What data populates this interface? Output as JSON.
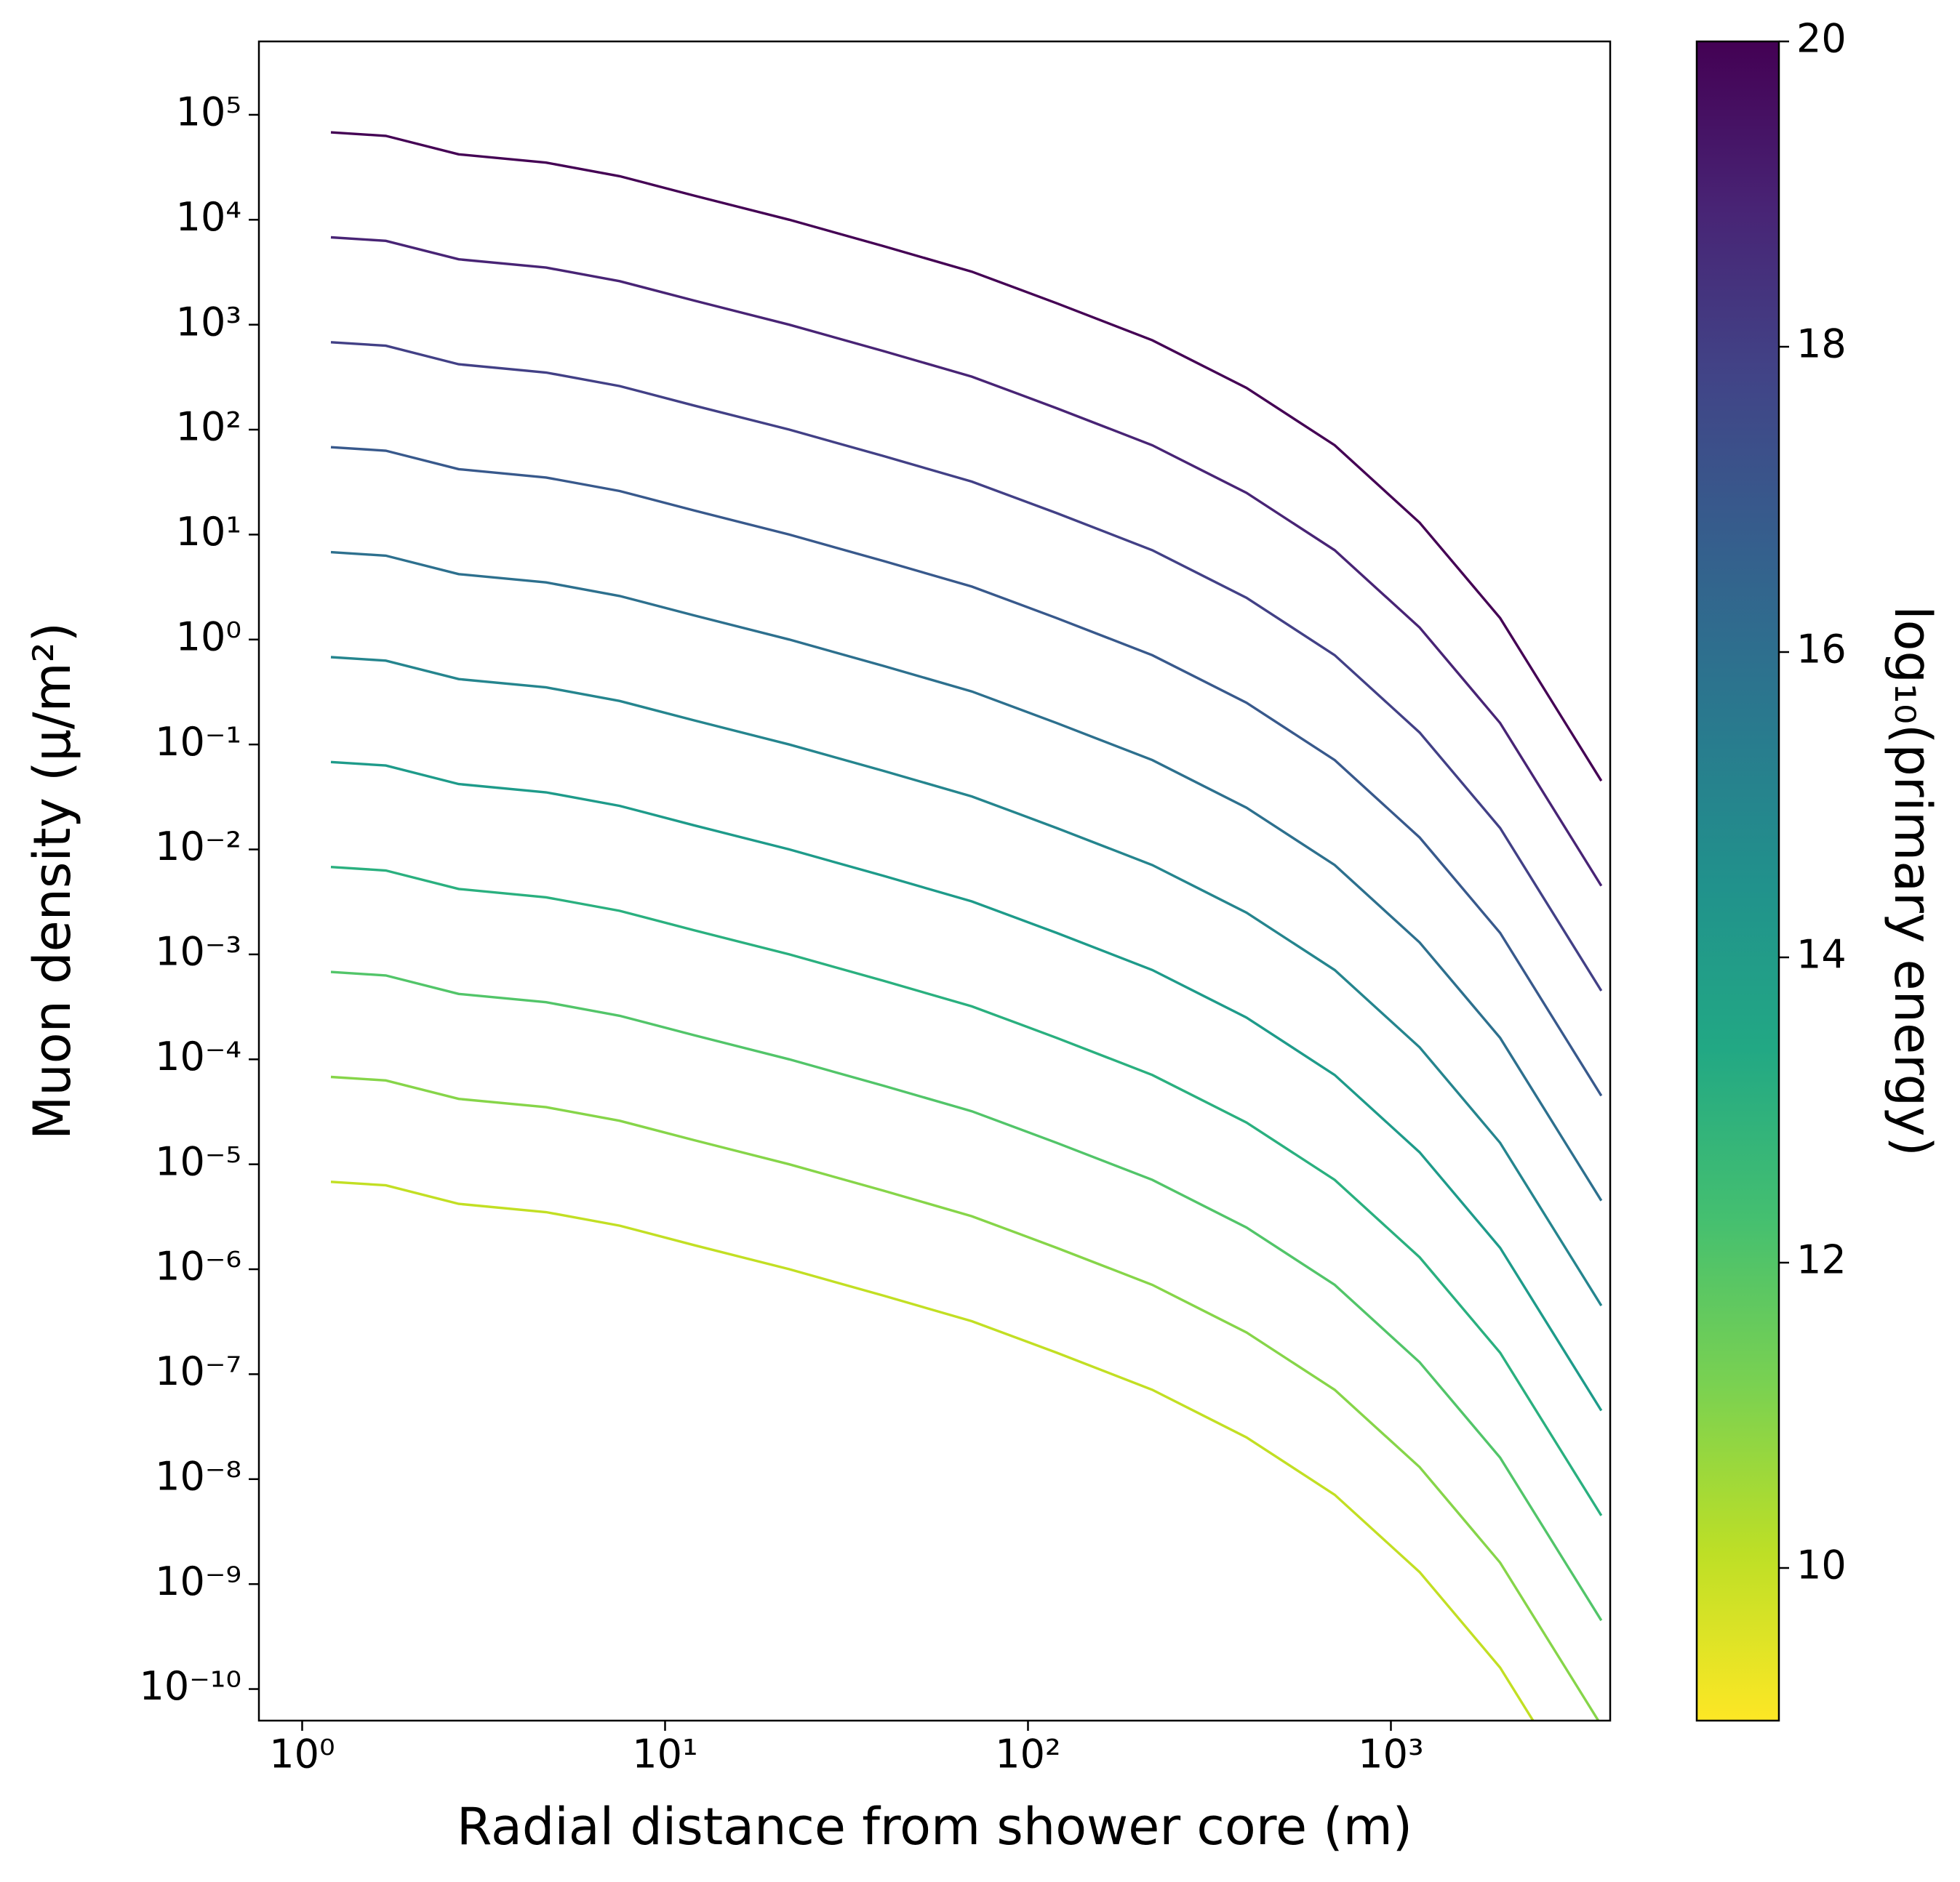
{
  "chart_data": {
    "type": "line",
    "log_x": true,
    "log_y": true,
    "xlabel": "Radial distance from shower core (m)",
    "ylabel": "Muon density (μ/m²)",
    "xlim": [
      0.76,
      4020
    ],
    "ylim": [
      5e-11,
      500000.0
    ],
    "xticks": [
      {
        "value": 1,
        "label": "10⁰"
      },
      {
        "value": 10,
        "label": "10¹"
      },
      {
        "value": 100,
        "label": "10²"
      },
      {
        "value": 1000,
        "label": "10³"
      }
    ],
    "yticks": [
      {
        "value": 100000.0,
        "label": "10⁵"
      },
      {
        "value": 10000.0,
        "label": "10⁴"
      },
      {
        "value": 1000.0,
        "label": "10³"
      },
      {
        "value": 100.0,
        "label": "10²"
      },
      {
        "value": 10.0,
        "label": "10¹"
      },
      {
        "value": 1,
        "label": "10⁰"
      },
      {
        "value": 0.1,
        "label": "10⁻¹"
      },
      {
        "value": 0.01,
        "label": "10⁻²"
      },
      {
        "value": 0.001,
        "label": "10⁻³"
      },
      {
        "value": 0.0001,
        "label": "10⁻⁴"
      },
      {
        "value": 1e-05,
        "label": "10⁻⁵"
      },
      {
        "value": 1e-06,
        "label": "10⁻⁶"
      },
      {
        "value": 1e-07,
        "label": "10⁻⁷"
      },
      {
        "value": 1e-08,
        "label": "10⁻⁸"
      },
      {
        "value": 1e-09,
        "label": "10⁻⁹"
      },
      {
        "value": 1e-10,
        "label": "10⁻¹⁰"
      }
    ],
    "x": [
      1.2,
      1.7,
      2.7,
      4.7,
      7.5,
      12,
      22,
      40,
      70,
      120,
      220,
      400,
      700,
      1200,
      2000,
      3800
    ],
    "series": [
      {
        "color": "#440154",
        "values": [
          68000.0,
          63000.0,
          42000.0,
          35000.0,
          26000.0,
          17000.0,
          10000.0,
          5600.0,
          3200.0,
          1600.0,
          710.0,
          250.0,
          71,
          13,
          1.6,
          0.045
        ]
      },
      {
        "color": "#482475",
        "values": [
          6800.0,
          6300.0,
          4200.0,
          3500.0,
          2600.0,
          1700.0,
          1000.0,
          560.0,
          320.0,
          160.0,
          71,
          25,
          7.1,
          1.3,
          0.16,
          0.0045
        ]
      },
      {
        "color": "#424086",
        "values": [
          680.0,
          630.0,
          420.0,
          350.0,
          260.0,
          170.0,
          100.0,
          56,
          32,
          16,
          7.1,
          2.5,
          0.71,
          0.13,
          0.016,
          0.00045
        ]
      },
      {
        "color": "#38598c",
        "values": [
          68,
          63,
          42,
          35,
          26,
          17,
          10,
          5.6,
          3.2,
          1.6,
          0.71,
          0.25,
          0.071,
          0.013,
          0.0016,
          4.5e-05
        ]
      },
      {
        "color": "#2d708e",
        "values": [
          6.8,
          6.3,
          4.2,
          3.5,
          2.6,
          1.7,
          1.0,
          0.56,
          0.32,
          0.16,
          0.071,
          0.025,
          0.0071,
          0.0013,
          0.00016,
          4.5e-06
        ]
      },
      {
        "color": "#25858e",
        "values": [
          0.68,
          0.63,
          0.42,
          0.35,
          0.26,
          0.17,
          0.1,
          0.056,
          0.032,
          0.016,
          0.0071,
          0.0025,
          0.00071,
          0.00013,
          1.6e-05,
          4.5e-07
        ]
      },
      {
        "color": "#1e9b8a",
        "values": [
          0.068,
          0.063,
          0.042,
          0.035,
          0.026,
          0.017,
          0.01,
          0.0056,
          0.0032,
          0.0016,
          0.00071,
          0.00025,
          7.1e-05,
          1.3e-05,
          1.6e-06,
          4.5e-08
        ]
      },
      {
        "color": "#2ab07f",
        "values": [
          0.0068,
          0.0063,
          0.0042,
          0.0035,
          0.0026,
          0.0017,
          0.001,
          0.00056,
          0.00032,
          0.00016,
          7.1e-05,
          2.5e-05,
          7.1e-06,
          1.3e-06,
          1.6e-07,
          4.5e-09
        ]
      },
      {
        "color": "#52c569",
        "values": [
          0.00068,
          0.00063,
          0.00042,
          0.00035,
          0.00026,
          0.00017,
          0.0001,
          5.6e-05,
          3.2e-05,
          1.6e-05,
          7.1e-06,
          2.5e-06,
          7.1e-07,
          1.3e-07,
          1.6e-08,
          4.5e-10
        ]
      },
      {
        "color": "#86d549",
        "values": [
          6.8e-05,
          6.3e-05,
          4.2e-05,
          3.5e-05,
          2.6e-05,
          1.7e-05,
          1e-05,
          5.6e-06,
          3.2e-06,
          1.6e-06,
          7.1e-07,
          2.5e-07,
          7.1e-08,
          1.3e-08,
          1.6e-09,
          4.5e-11
        ]
      },
      {
        "color": "#c2df23",
        "values": [
          6.8e-06,
          6.3e-06,
          4.2e-06,
          3.5e-06,
          2.6e-06,
          1.7e-06,
          1e-06,
          5.6e-07,
          3.2e-07,
          1.6e-07,
          7.1e-08,
          2.5e-08,
          7.1e-09,
          1.3e-09,
          1.6e-10,
          4.5e-12
        ]
      }
    ],
    "colorbar": {
      "label": "log₁₀(primary energy)",
      "clim": [
        9,
        20
      ],
      "ticks": [
        10,
        12,
        14,
        16,
        18,
        20
      ],
      "colormap": [
        "#fde725",
        "#bddf26",
        "#7ad151",
        "#44bf70",
        "#22a884",
        "#21918c",
        "#2a788e",
        "#355f8d",
        "#414487",
        "#482475",
        "#440154"
      ]
    }
  }
}
